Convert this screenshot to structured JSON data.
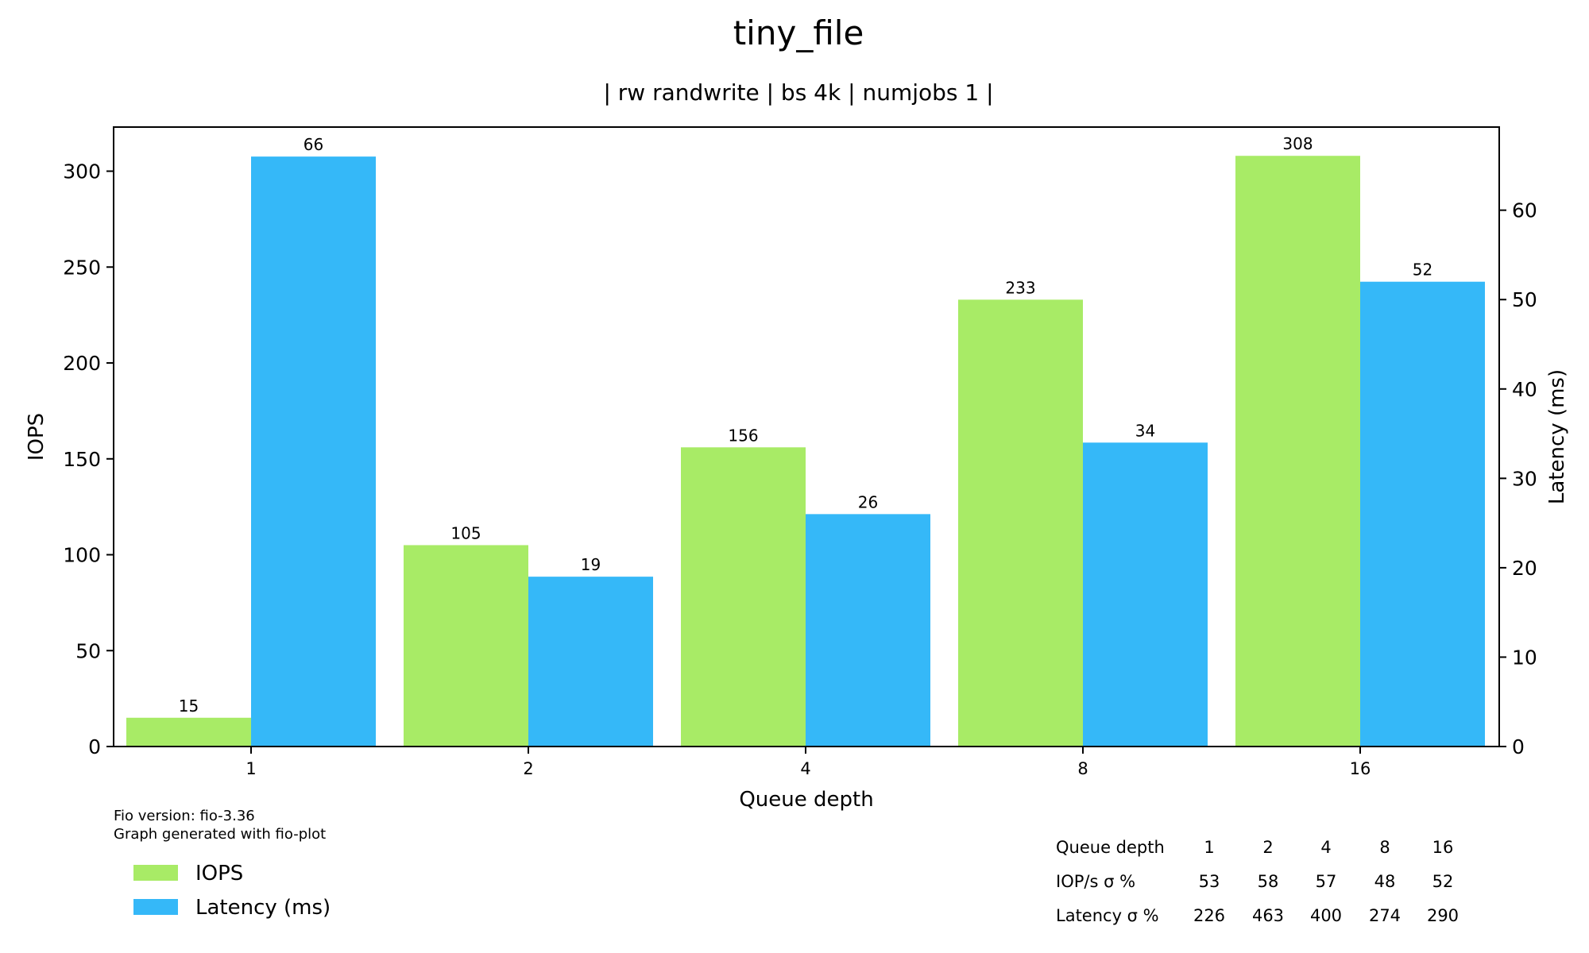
{
  "chart_data": {
    "type": "bar",
    "title": "tiny_file",
    "subtitle": "| rw randwrite | bs 4k | numjobs 1 |",
    "xlabel": "Queue depth",
    "ylabel": "IOPS",
    "y2label": "Latency (ms)",
    "categories": [
      "1",
      "2",
      "4",
      "8",
      "16"
    ],
    "ylim": [
      0,
      323
    ],
    "y2lim": [
      0,
      69.3
    ],
    "yticks": [
      0,
      50,
      100,
      150,
      200,
      250,
      300
    ],
    "y2ticks": [
      0,
      10,
      20,
      30,
      40,
      50,
      60
    ],
    "grid": false,
    "legend_position": "bottom-left",
    "series": [
      {
        "name": "IOPS",
        "axis": "left",
        "color": "#a8eb66",
        "values": [
          15,
          105,
          156,
          233,
          308
        ],
        "labels": [
          "15",
          "105",
          "156",
          "233",
          "308"
        ]
      },
      {
        "name": "Latency (ms)",
        "axis": "right",
        "color": "#35b8f8",
        "values": [
          66,
          19,
          26,
          34,
          52
        ],
        "labels": [
          "66",
          "19",
          "26",
          "34",
          "52"
        ]
      }
    ]
  },
  "footer": {
    "fio_version": "Fio version: fio-3.36",
    "generated_with": "Graph generated with fio-plot"
  },
  "stats_table": {
    "header": [
      "Queue depth",
      "1",
      "2",
      "4",
      "8",
      "16"
    ],
    "rows": [
      [
        "IOP/s σ %",
        "53",
        "58",
        "57",
        "48",
        "52"
      ],
      [
        "Latency σ %",
        "226",
        "463",
        "400",
        "274",
        "290"
      ]
    ]
  }
}
